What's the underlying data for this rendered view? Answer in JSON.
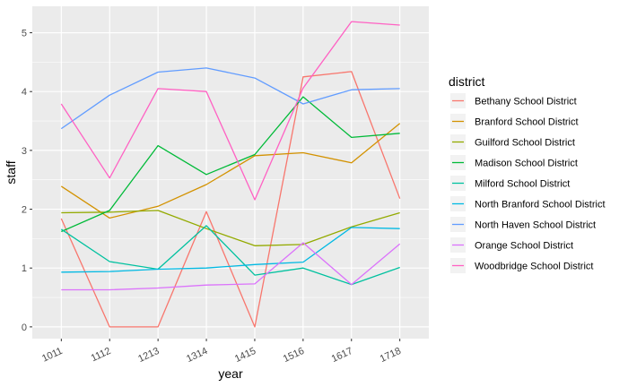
{
  "chart_data": {
    "type": "line",
    "xlabel": "year",
    "ylabel": "staff",
    "categories": [
      "1011",
      "1112",
      "1213",
      "1314",
      "1415",
      "1516",
      "1617",
      "1718"
    ],
    "ylim": [
      -0.2,
      5.45
    ],
    "yticks": [
      0,
      1,
      2,
      3,
      4,
      5
    ],
    "grid": true,
    "panel_background": "#EBEBEB",
    "legend": {
      "title": "district",
      "placement": "right"
    },
    "series": [
      {
        "name": "Bethany School District",
        "color": "#F8766D",
        "values": [
          1.84,
          0.0,
          0.0,
          1.96,
          0.0,
          4.25,
          4.34,
          2.18
        ]
      },
      {
        "name": "Branford School District",
        "color": "#D39200",
        "values": [
          2.39,
          1.85,
          2.05,
          2.42,
          2.91,
          2.96,
          2.79,
          3.46
        ]
      },
      {
        "name": "Guilford School District",
        "color": "#93AA00",
        "values": [
          1.94,
          1.95,
          1.98,
          1.67,
          1.38,
          1.4,
          1.7,
          1.94
        ]
      },
      {
        "name": "Madison School District",
        "color": "#00BA38",
        "values": [
          1.62,
          1.98,
          3.08,
          2.59,
          2.93,
          3.91,
          3.22,
          3.29
        ]
      },
      {
        "name": "Milford School District",
        "color": "#00C19F",
        "values": [
          1.66,
          1.11,
          0.98,
          1.72,
          0.88,
          1.0,
          0.72,
          1.01
        ]
      },
      {
        "name": "North Branford School District",
        "color": "#00B9E3",
        "values": [
          0.93,
          0.94,
          0.98,
          1.0,
          1.06,
          1.1,
          1.69,
          1.67
        ]
      },
      {
        "name": "North Haven School District",
        "color": "#619CFF",
        "values": [
          3.37,
          3.94,
          4.33,
          4.4,
          4.23,
          3.79,
          4.03,
          4.05
        ]
      },
      {
        "name": "Orange School District",
        "color": "#DB72FB",
        "values": [
          0.63,
          0.63,
          0.66,
          0.71,
          0.73,
          1.43,
          0.72,
          1.41
        ]
      },
      {
        "name": "Woodbridge School District",
        "color": "#FF61C3",
        "values": [
          3.79,
          2.53,
          4.05,
          4.0,
          2.16,
          4.06,
          5.19,
          5.13
        ]
      }
    ]
  }
}
